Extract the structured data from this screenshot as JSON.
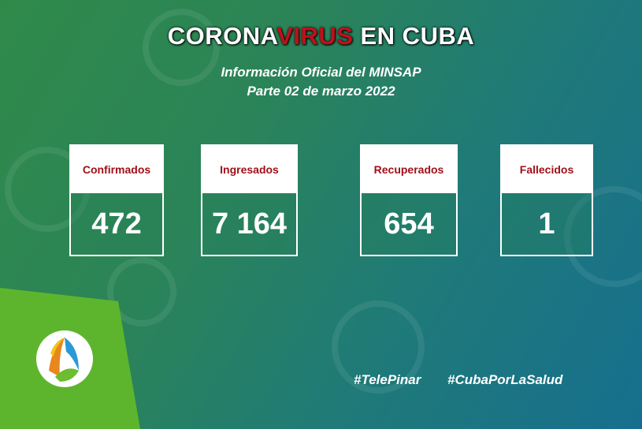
{
  "title": {
    "prefix": "CORONA",
    "highlight": "VIRUS",
    "suffix": "EN CUBA"
  },
  "subtitle": [
    "Información Oficial del MINSAP",
    "Parte 02 de marzo 2022"
  ],
  "cards": [
    {
      "label": "Confirmados",
      "value": "472"
    },
    {
      "label": "Ingresados",
      "value": "7 164"
    },
    {
      "label": "Recuperados",
      "value": "654"
    },
    {
      "label": "Fallecidos",
      "value": "1"
    }
  ],
  "hashtags": [
    "#TelePinar",
    "#CubaPorLaSalud"
  ]
}
